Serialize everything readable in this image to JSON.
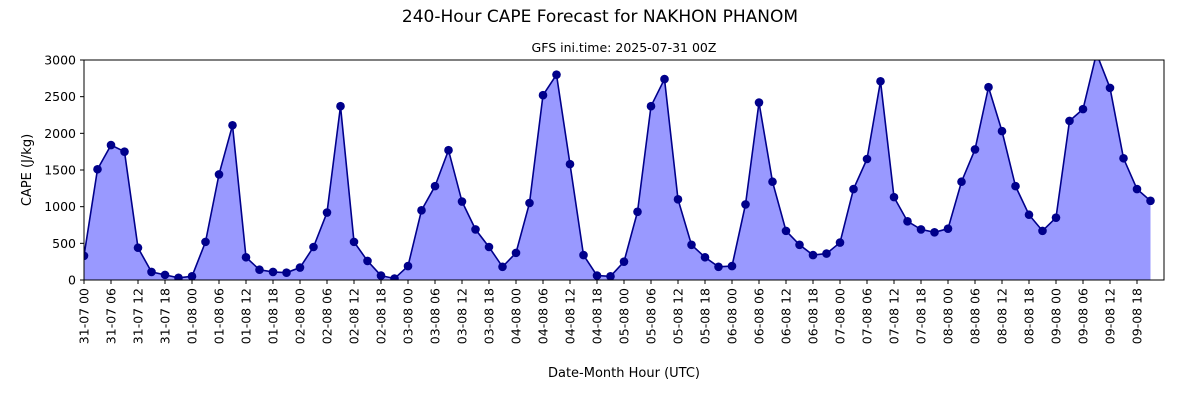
{
  "chart_data": {
    "type": "area",
    "title": "240-Hour CAPE Forecast for NAKHON PHANOM",
    "subtitle": "GFS ini.time: 2025-07-31 00Z",
    "xlabel": "Date-Month Hour (UTC)",
    "ylabel": "CAPE (J/kg)",
    "ylim": [
      0,
      3000
    ],
    "yticks": [
      0,
      500,
      1000,
      1500,
      2000,
      2500,
      3000
    ],
    "x_step_hours": 3,
    "xlim_steps": [
      0,
      80
    ],
    "xtick_labels": [
      "31-07 00",
      "31-07 06",
      "31-07 12",
      "31-07 18",
      "01-08 00",
      "01-08 06",
      "01-08 12",
      "01-08 18",
      "02-08 00",
      "02-08 06",
      "02-08 12",
      "02-08 18",
      "03-08 00",
      "03-08 06",
      "03-08 12",
      "03-08 18",
      "04-08 00",
      "04-08 06",
      "04-08 12",
      "04-08 18",
      "05-08 00",
      "05-08 06",
      "05-08 12",
      "05-08 18",
      "06-08 00",
      "06-08 06",
      "06-08 12",
      "06-08 18",
      "07-08 00",
      "07-08 06",
      "07-08 12",
      "07-08 18",
      "08-08 00",
      "08-08 06",
      "08-08 12",
      "08-08 18",
      "09-08 00",
      "09-08 06",
      "09-08 12",
      "09-08 18"
    ],
    "grid": false,
    "line_color": "#00008b",
    "fill_color": "#9999ff",
    "series": [
      {
        "values": [
          330,
          1510,
          1840,
          1750,
          440,
          110,
          70,
          30,
          50,
          520,
          1440,
          2110,
          310,
          140,
          110,
          100,
          170,
          450,
          920,
          2370,
          520,
          260,
          60,
          20,
          190,
          950,
          1280,
          1770,
          1070,
          690,
          450,
          180,
          370,
          1050,
          2520,
          2800,
          1580,
          340,
          60,
          50,
          250,
          930,
          2370,
          2740,
          1100,
          480,
          310,
          180,
          190,
          1030,
          2420,
          1340,
          670,
          480,
          340,
          360,
          510,
          1240,
          1650,
          2710,
          1130,
          800,
          690,
          650,
          700,
          1340,
          1780,
          2630,
          2030,
          1280,
          890,
          670,
          850,
          2170,
          2330,
          3090,
          2620,
          1660,
          1240,
          1080
        ]
      }
    ]
  }
}
